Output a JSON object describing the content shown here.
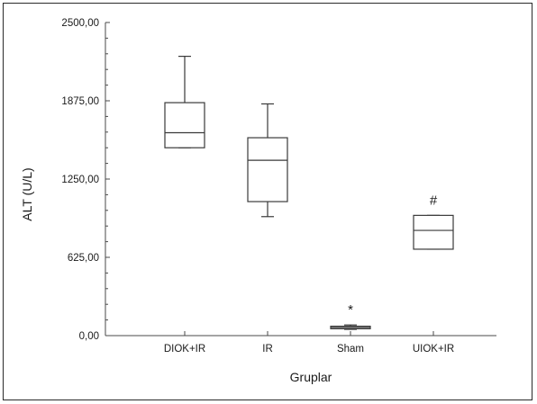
{
  "chart_data": {
    "type": "box",
    "title": "",
    "xlabel": "Gruplar",
    "ylabel": "ALT (U/L)",
    "ylim": [
      0,
      2500
    ],
    "yticks": [
      "0,00",
      "625,00",
      "1250,00",
      "1875,00",
      "2500,00"
    ],
    "ytick_values": [
      0,
      625,
      1250,
      1875,
      2500
    ],
    "grid": false,
    "categories": [
      "DIOK+IR",
      "IR",
      "Sham",
      "UIOK+IR"
    ],
    "boxes": [
      {
        "category": "DIOK+IR",
        "min": 1500,
        "q1": 1500,
        "median": 1620,
        "q3": 1860,
        "max": 2230,
        "annotation": ""
      },
      {
        "category": "IR",
        "min": 950,
        "q1": 1070,
        "median": 1400,
        "q3": 1580,
        "max": 1850,
        "annotation": ""
      },
      {
        "category": "Sham",
        "min": 50,
        "q1": 55,
        "median": 65,
        "q3": 75,
        "max": 85,
        "annotation": "*"
      },
      {
        "category": "UIOK+IR",
        "min": 690,
        "q1": 690,
        "median": 840,
        "q3": 960,
        "max": 960,
        "annotation": "#"
      }
    ],
    "colors": {
      "box_stroke": "#3a3a3a",
      "axis": "#4a4a4a"
    }
  }
}
